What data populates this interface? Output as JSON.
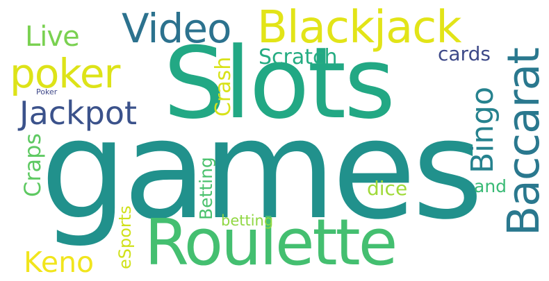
{
  "words": {
    "games": {
      "text": "games",
      "color": "#21918c"
    },
    "slots": {
      "text": "Slots",
      "color": "#22a884"
    },
    "roulette": {
      "text": "Roulette",
      "color": "#44bf70"
    },
    "blackjack": {
      "text": "Blackjack",
      "color": "#e2e418"
    },
    "video": {
      "text": "Video",
      "color": "#2c728e"
    },
    "poker": {
      "text": "poker",
      "color": "#dde318"
    },
    "jackpot": {
      "text": "Jackpot",
      "color": "#3b528b"
    },
    "live": {
      "text": "Live",
      "color": "#7ad151"
    },
    "scratch": {
      "text": "Scratch",
      "color": "#25ac82"
    },
    "cards": {
      "text": "cards",
      "color": "#3e4a89"
    },
    "baccarat": {
      "text": "Baccarat",
      "color": "#2a788e"
    },
    "bingo": {
      "text": "Bingo",
      "color": "#26828e"
    },
    "crash": {
      "text": "Crash",
      "color": "#d8e219"
    },
    "craps": {
      "text": "Craps",
      "color": "#5ec962"
    },
    "betting_cap": {
      "text": "Betting",
      "color": "#4ac16d"
    },
    "betting": {
      "text": "betting",
      "color": "#90d743"
    },
    "dice": {
      "text": "dice",
      "color": "#a0da39"
    },
    "and": {
      "text": "and",
      "color": "#3aba76"
    },
    "keno": {
      "text": "Keno",
      "color": "#f1e51d"
    },
    "esports": {
      "text": "eSports",
      "color": "#d0e11c"
    },
    "poker_small": {
      "text": "Poker",
      "color": "#3f4889"
    }
  }
}
